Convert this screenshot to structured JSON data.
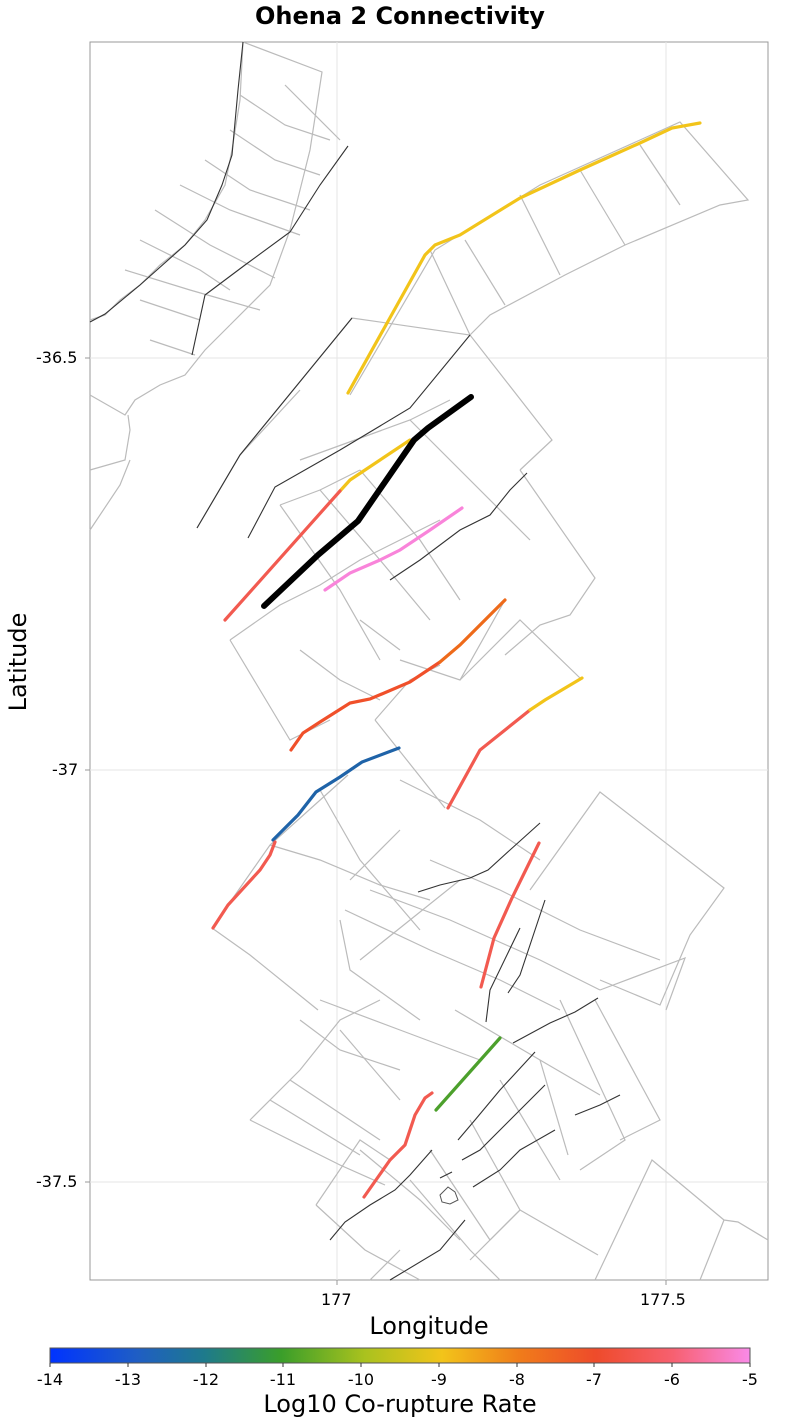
{
  "title": "Ohena 2 Connectivity",
  "x_axis": {
    "label": "Longitude",
    "ticks": [
      "177",
      "177.5"
    ]
  },
  "y_axis": {
    "label": "Latitude",
    "ticks": [
      "-36.5",
      "-37",
      "-37.5"
    ]
  },
  "colorbar": {
    "label": "Log10 Co-rupture Rate",
    "ticks": [
      "-14",
      "-13",
      "-12",
      "-11",
      "-10",
      "-9",
      "-8",
      "-7",
      "-6",
      "-5"
    ],
    "colors": [
      "#0033ff",
      "#1c7a9a",
      "#3a9e2a",
      "#aac21e",
      "#f2c41a",
      "#f07c1a",
      "#ee4b2b",
      "#f76070",
      "#f98ae8"
    ]
  },
  "target_fault": {
    "name": "Ohena 2",
    "color": "#000000"
  },
  "fault_colors": {
    "yellow": "#f2c41a",
    "red": "#f25a50",
    "pink": "#f984da",
    "orange": "#ee6a1a",
    "blue": "#1f63a8",
    "green": "#4ca02c",
    "background": "#bbbbbb",
    "trace": "#333333"
  }
}
